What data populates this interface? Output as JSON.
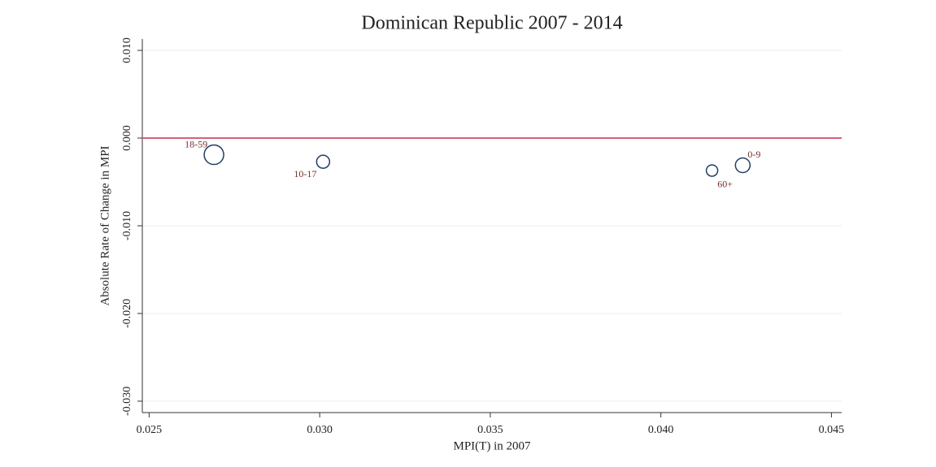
{
  "chart_data": {
    "type": "scatter",
    "title": "Dominican Republic 2007 - 2014",
    "x_label": "MPI(T) in 2007",
    "y_label": "Absolute Rate of Change in MPI",
    "point_labels": [
      "18-59",
      "10-17",
      "60+",
      "0-9"
    ],
    "x": [
      0.0269,
      0.0301,
      0.0415,
      0.0424
    ],
    "y": [
      -0.0019,
      -0.0027,
      -0.0037,
      -0.0031
    ],
    "sizes": [
      12,
      8,
      7,
      9
    ],
    "color": "#1f3f66",
    "label_color": "#7a2d2d",
    "reference_line": {
      "y": 0,
      "color": "#d6617a"
    },
    "xlim": [
      0.0248,
      0.0453
    ],
    "ylim": [
      -0.0313,
      0.0113
    ],
    "xticks": [
      0.025,
      {
        "value": 0.03,
        "label": "0.030"
      },
      0.035,
      {
        "value": 0.04,
        "label": "0.040"
      },
      0.045
    ],
    "yticks": [
      {
        "value": -0.03,
        "label": "-0.030"
      },
      {
        "value": -0.02,
        "label": "-0.020"
      },
      {
        "value": -0.01,
        "label": "-0.010"
      },
      {
        "value": 0,
        "label": "0.000"
      },
      {
        "value": 0.01,
        "label": "0.010"
      }
    ],
    "grid": true
  }
}
